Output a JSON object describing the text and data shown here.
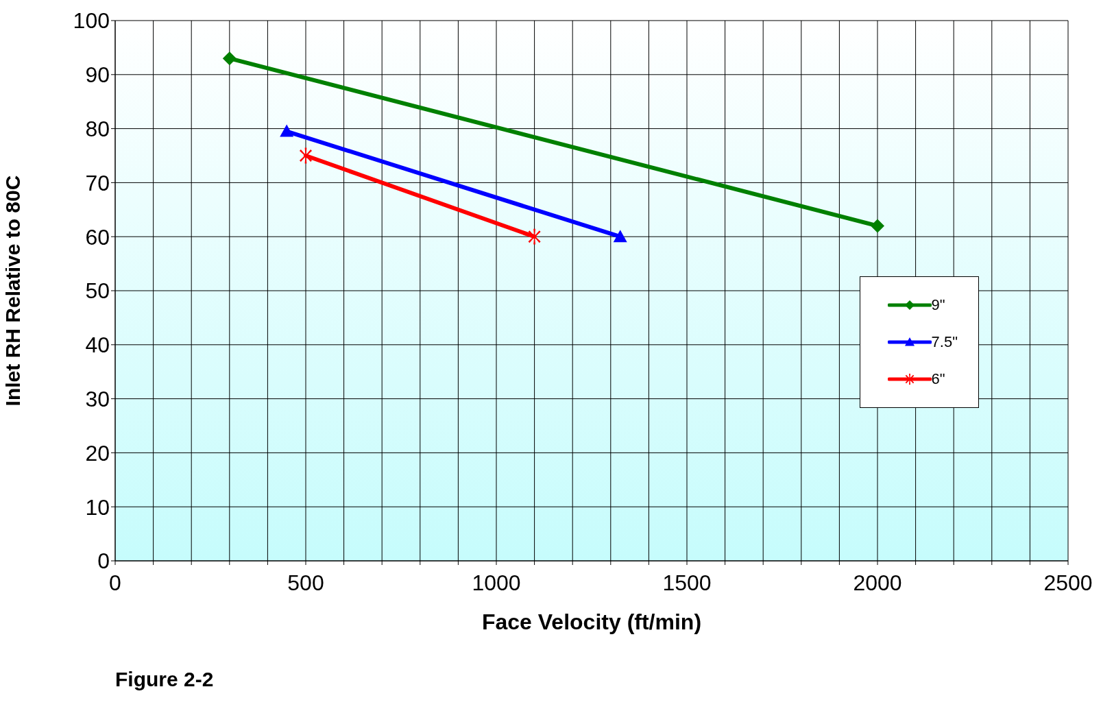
{
  "chart_data": {
    "type": "line",
    "xlabel": "Face Velocity (ft/min)",
    "ylabel": "Inlet RH Relative to 80C",
    "annotations": [
      "Figure 2-2"
    ],
    "xlim": [
      0,
      2500
    ],
    "ylim": [
      0,
      100
    ],
    "xticks": [
      0,
      {
        "value": 100,
        "label": null
      },
      {
        "value": 200,
        "label": null
      },
      {
        "value": 300,
        "label": null
      },
      {
        "value": 400,
        "label": null
      },
      500,
      {
        "value": 600,
        "label": null
      },
      {
        "value": 700,
        "label": null
      },
      {
        "value": 800,
        "label": null
      },
      {
        "value": 900,
        "label": null
      },
      1000,
      {
        "value": 1100,
        "label": null
      },
      {
        "value": 1200,
        "label": null
      },
      {
        "value": 1300,
        "label": null
      },
      {
        "value": 1400,
        "label": null
      },
      1500,
      {
        "value": 1600,
        "label": null
      },
      {
        "value": 1700,
        "label": null
      },
      {
        "value": 1800,
        "label": null
      },
      {
        "value": 1900,
        "label": null
      },
      2000,
      {
        "value": 2100,
        "label": null
      },
      {
        "value": 2200,
        "label": null
      },
      {
        "value": 2300,
        "label": null
      },
      {
        "value": 2400,
        "label": null
      },
      2500
    ],
    "yticks": [
      0,
      10,
      20,
      30,
      40,
      50,
      60,
      70,
      80,
      90,
      100
    ],
    "grid": true,
    "legend": "right",
    "line_style": "solid",
    "series": [
      {
        "name": "9\"",
        "color": "#008000",
        "marker": "diamond",
        "x": [
          300,
          2000
        ],
        "values": [
          93,
          62
        ]
      },
      {
        "name": "7.5\"",
        "color": "#0000ff",
        "marker": "triangle",
        "x": [
          450,
          1325
        ],
        "values": [
          79.5,
          60
        ]
      },
      {
        "name": "6\"",
        "color": "#ff0000",
        "marker": "cross",
        "x": [
          500,
          1100
        ],
        "values": [
          75,
          60
        ]
      }
    ]
  }
}
